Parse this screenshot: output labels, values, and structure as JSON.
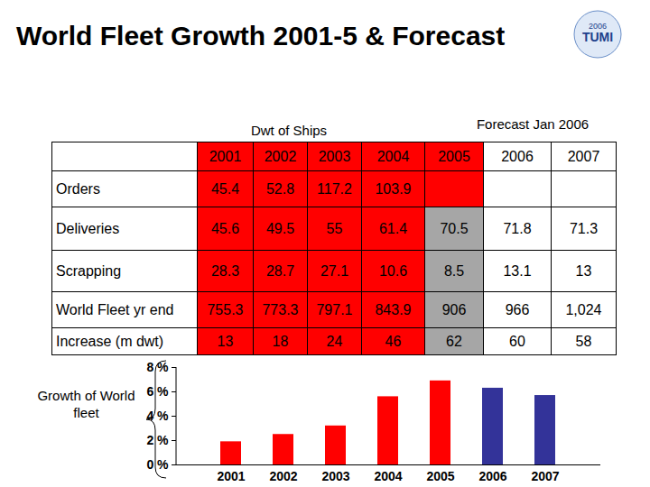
{
  "title": "World Fleet Growth 2001-5 & Forecast",
  "logo": [
    "2006",
    "TUMI"
  ],
  "table": {
    "groups": [
      "Dwt of Ships",
      "Forecast Jan 2006"
    ],
    "header": [
      "2001",
      "2002",
      "2003",
      "2004",
      "2005",
      "2006",
      "2007"
    ],
    "rows": [
      {
        "label": "Orders",
        "cells": [
          "45.4",
          "52.8",
          "117.2",
          "103.9",
          null,
          null,
          null
        ]
      },
      {
        "label": "Deliveries",
        "cells": [
          "45.6",
          "49.5",
          "55",
          "61.4",
          "70.5",
          "71.8",
          "71.3"
        ]
      },
      {
        "label": "Scrapping",
        "cells": [
          "28.3",
          "28.7",
          "27.1",
          "10.6",
          "8.5",
          "13.1",
          "13"
        ]
      },
      {
        "label": "World Fleet yr end",
        "cells": [
          "755.3",
          "773.3",
          "797.1",
          "843.9",
          "906",
          "966",
          "1,024"
        ]
      },
      {
        "label": "Increase (m dwt)",
        "cells": [
          "13",
          "18",
          "24",
          "46",
          "62",
          "60",
          "58"
        ]
      }
    ]
  },
  "chart_data": {
    "type": "bar",
    "ylabel": "Growth of World fleet",
    "categories": [
      "2001",
      "2002",
      "2003",
      "2004",
      "2005",
      "2006",
      "2007"
    ],
    "values": [
      1.9,
      2.5,
      3.2,
      5.6,
      6.9,
      6.3,
      5.7
    ],
    "colors": [
      "#ff0000",
      "#ff0000",
      "#ff0000",
      "#ff0000",
      "#ff0000",
      "#333399",
      "#333399"
    ],
    "ylim": [
      0,
      8
    ],
    "yticks": [
      {
        "value": 0,
        "label": "0 %"
      },
      {
        "value": 2,
        "label": "2 %"
      },
      {
        "value": 4,
        "label": "4 %"
      },
      {
        "value": 6,
        "label": "6 %"
      },
      {
        "value": 8,
        "label": "8 %"
      }
    ],
    "grid": false
  }
}
